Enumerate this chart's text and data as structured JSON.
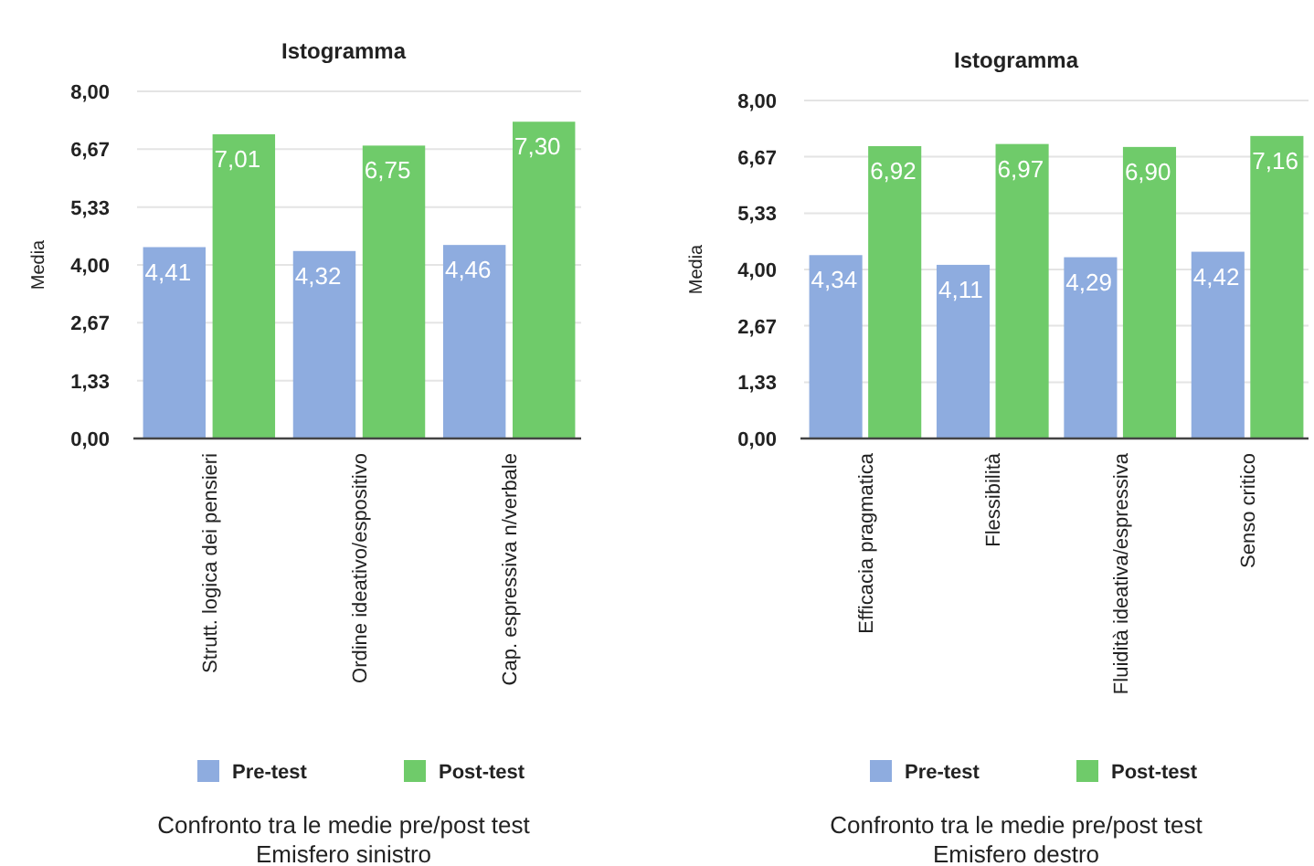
{
  "chart_data": [
    {
      "type": "bar",
      "title": "Istogramma",
      "ylabel": "Media",
      "categories": [
        "Strutt. logica dei pensieri",
        "Ordine ideativo/espositivo",
        "Cap. espressiva n/verbale"
      ],
      "series": [
        {
          "name": "Pre-test",
          "color": "#8eacdf",
          "values": [
            4.41,
            4.32,
            4.46
          ],
          "value_labels": [
            "4,41",
            "4,32",
            "4,46"
          ]
        },
        {
          "name": "Post-test",
          "color": "#6fcb6a",
          "values": [
            7.01,
            6.75,
            7.3
          ],
          "value_labels": [
            "7,01",
            "6,75",
            "7,30"
          ]
        }
      ],
      "ylim": [
        0,
        8
      ],
      "yticks": [
        {
          "value": 0,
          "label": "0,00"
        },
        {
          "value": 1.33,
          "label": "1,33"
        },
        {
          "value": 2.67,
          "label": "2,67"
        },
        {
          "value": 4,
          "label": "4,00"
        },
        {
          "value": 5.33,
          "label": "5,33"
        },
        {
          "value": 6.67,
          "label": "6,67"
        },
        {
          "value": 8,
          "label": "8,00"
        }
      ],
      "grid": "y",
      "legend": "bottom",
      "annotations": [
        "Confronto tra le medie pre/post test",
        "Emisfero sinistro"
      ]
    },
    {
      "type": "bar",
      "title": "Istogramma",
      "ylabel": "Media",
      "categories": [
        "Efficacia pragmatica",
        "Flessibilità",
        "Fluidità ideativa/espressiva",
        "Senso critico"
      ],
      "series": [
        {
          "name": "Pre-test",
          "color": "#8eacdf",
          "values": [
            4.34,
            4.11,
            4.29,
            4.42
          ],
          "value_labels": [
            "4,34",
            "4,11",
            "4,29",
            "4,42"
          ]
        },
        {
          "name": "Post-test",
          "color": "#6fcb6a",
          "values": [
            6.92,
            6.97,
            6.9,
            7.16
          ],
          "value_labels": [
            "6,92",
            "6,97",
            "6,90",
            "7,16"
          ]
        }
      ],
      "ylim": [
        0,
        8
      ],
      "yticks": [
        {
          "value": 0,
          "label": "0,00"
        },
        {
          "value": 1.33,
          "label": "1,33"
        },
        {
          "value": 2.67,
          "label": "2,67"
        },
        {
          "value": 4,
          "label": "4,00"
        },
        {
          "value": 5.33,
          "label": "5,33"
        },
        {
          "value": 6.67,
          "label": "6,67"
        },
        {
          "value": 8,
          "label": "8,00"
        }
      ],
      "grid": "y",
      "legend": "bottom",
      "annotations": [
        "Confronto tra le medie pre/post test",
        "Emisfero destro"
      ]
    }
  ]
}
